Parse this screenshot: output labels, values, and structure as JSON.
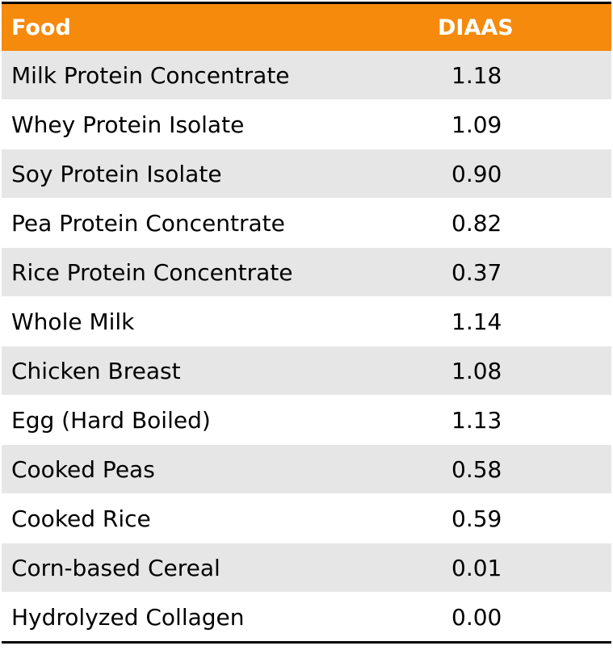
{
  "table": {
    "headers": [
      "Food",
      "DIAAS"
    ],
    "rows": [
      {
        "food": "Milk Protein Concentrate",
        "diaas": "1.18"
      },
      {
        "food": "Whey Protein Isolate",
        "diaas": "1.09"
      },
      {
        "food": "Soy Protein Isolate",
        "diaas": "0.90"
      },
      {
        "food": "Pea Protein Concentrate",
        "diaas": "0.82"
      },
      {
        "food": "Rice Protein Concentrate",
        "diaas": "0.37"
      },
      {
        "food": "Whole Milk",
        "diaas": "1.14"
      },
      {
        "food": "Chicken Breast",
        "diaas": "1.08"
      },
      {
        "food": "Egg (Hard Boiled)",
        "diaas": "1.13"
      },
      {
        "food": "Cooked Peas",
        "diaas": "0.58"
      },
      {
        "food": "Cooked Rice",
        "diaas": "0.59"
      },
      {
        "food": "Corn-based Cereal",
        "diaas": "0.01"
      },
      {
        "food": "Hydrolyzed Collagen",
        "diaas": "0.00"
      }
    ]
  },
  "colors": {
    "header_bg": "#f58a0c",
    "header_text": "#ffffff",
    "stripe": "#e6e6e6",
    "rule": "#000000"
  }
}
